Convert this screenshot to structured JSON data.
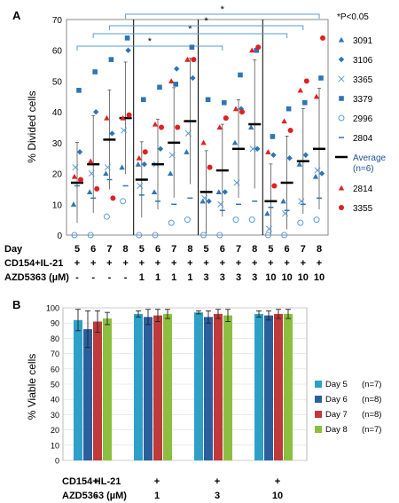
{
  "chart_data": [
    {
      "panel": "A",
      "type": "scatter",
      "ylabel": "% Divided cells",
      "ylim": [
        0,
        70
      ],
      "yticks": [
        0,
        10,
        20,
        30,
        40,
        50,
        60,
        70
      ],
      "row_labels": [
        "Day",
        "CD154+IL-21",
        "AZD5363 (µM)"
      ],
      "columns": [
        {
          "day": "5",
          "cd": "+",
          "azd": "-"
        },
        {
          "day": "6",
          "cd": "+",
          "azd": "-"
        },
        {
          "day": "7",
          "cd": "+",
          "azd": "-"
        },
        {
          "day": "8",
          "cd": "+",
          "azd": "-"
        },
        {
          "day": "5",
          "cd": "+",
          "azd": "1"
        },
        {
          "day": "6",
          "cd": "+",
          "azd": "1"
        },
        {
          "day": "7",
          "cd": "+",
          "azd": "1"
        },
        {
          "day": "8",
          "cd": "+",
          "azd": "1"
        },
        {
          "day": "5",
          "cd": "+",
          "azd": "3"
        },
        {
          "day": "6",
          "cd": "+",
          "azd": "3"
        },
        {
          "day": "7",
          "cd": "+",
          "azd": "3"
        },
        {
          "day": "8",
          "cd": "+",
          "azd": "3"
        },
        {
          "day": "5",
          "cd": "+",
          "azd": "10"
        },
        {
          "day": "6",
          "cd": "+",
          "azd": "10"
        },
        {
          "day": "7",
          "cd": "+",
          "azd": "10"
        },
        {
          "day": "8",
          "cd": "+",
          "azd": "10"
        }
      ],
      "significance_note": "*P<0.05",
      "significance_brackets": [
        {
          "from_col": 0,
          "to_col": 9,
          "label": "*"
        },
        {
          "from_col": 1,
          "to_col": 13,
          "label": "*"
        },
        {
          "from_col": 2,
          "to_col": 14,
          "label": "*"
        },
        {
          "from_col": 3,
          "to_col": 15,
          "label": "*"
        }
      ],
      "series": [
        {
          "name": "3091",
          "marker": "triangle",
          "color": "#2e75b6",
          "values": [
            10,
            14,
            20,
            22,
            23,
            14,
            20,
            27,
            11,
            14,
            30,
            35,
            7,
            11,
            23,
            19
          ]
        },
        {
          "name": "3106",
          "marker": "diamond",
          "color": "#2e75b6",
          "values": [
            27,
            40,
            33,
            60,
            23,
            28,
            54,
            51,
            11,
            14,
            41,
            28,
            26,
            25,
            26,
            20
          ]
        },
        {
          "name": "3365",
          "marker": "x",
          "color": "#5b9bd5",
          "values": [
            22,
            20,
            22,
            34,
            16,
            23,
            26,
            33,
            12,
            10,
            17,
            28,
            2,
            7,
            11,
            21
          ]
        },
        {
          "name": "3379",
          "marker": "square",
          "color": "#2e75b6",
          "values": [
            47,
            53,
            57,
            64,
            44,
            48,
            49,
            61,
            44,
            43,
            52,
            60,
            32,
            41,
            43,
            51
          ]
        },
        {
          "name": "2996",
          "marker": "circle-open",
          "color": "#5b9bd5",
          "values": [
            0,
            0,
            6,
            11,
            0,
            0,
            4,
            5,
            0,
            0,
            5,
            5,
            0,
            0,
            4,
            5
          ]
        },
        {
          "name": "2804",
          "marker": "dash",
          "color": "#2e75b6",
          "values": [
            16,
            12,
            18,
            16,
            13,
            11,
            10,
            12,
            14,
            8,
            10,
            11,
            9,
            8,
            10,
            12
          ]
        },
        {
          "name": "Average (n=6)",
          "marker": "bar",
          "color": "#000000",
          "values": [
            17,
            23,
            31,
            38,
            18,
            23,
            30,
            37,
            14,
            21,
            28,
            36,
            11,
            17,
            24,
            28
          ]
        },
        {
          "name": "2814",
          "marker": "triangle",
          "color": "#e02020",
          "values": [
            19,
            24,
            38,
            38,
            25,
            36,
            50,
            57,
            30,
            35,
            41,
            60,
            27,
            37,
            47,
            45
          ]
        },
        {
          "name": "3355",
          "marker": "circle",
          "color": "#e02020",
          "values": [
            18,
            15,
            12,
            39,
            27,
            35,
            35,
            57,
            22,
            38,
            40,
            61,
            16,
            34,
            50,
            64
          ]
        }
      ]
    },
    {
      "panel": "B",
      "type": "bar",
      "ylabel": "% Viable  cells",
      "ylim": [
        0,
        100
      ],
      "yticks": [
        0,
        10,
        20,
        30,
        40,
        50,
        60,
        70,
        80,
        90,
        100
      ],
      "row_labels": [
        "CD154+IL-21",
        "AZD5363 (µM)"
      ],
      "groups": [
        {
          "cd": "+",
          "azd": "-"
        },
        {
          "cd": "+",
          "azd": "1"
        },
        {
          "cd": "+",
          "azd": "3"
        },
        {
          "cd": "+",
          "azd": "10"
        }
      ],
      "series": [
        {
          "name": "Day 5",
          "n": "(n=7)",
          "color": "#2ea0c8",
          "values": [
            92,
            96,
            97,
            96
          ],
          "errors": [
            7,
            2,
            1,
            2
          ]
        },
        {
          "name": "Day 6",
          "n": "(n=8)",
          "color": "#2a5f9e",
          "values": [
            86,
            94,
            94,
            95
          ],
          "errors": [
            12,
            5,
            4,
            3
          ]
        },
        {
          "name": "Day 7",
          "n": "(n=8)",
          "color": "#c0393b",
          "values": [
            91,
            95,
            96,
            96
          ],
          "errors": [
            7,
            4,
            3,
            3
          ]
        },
        {
          "name": "Day 8",
          "n": "(n=7)",
          "color": "#8cbf3f",
          "values": [
            93,
            96,
            95,
            96
          ],
          "errors": [
            4,
            3,
            4,
            3
          ]
        }
      ]
    }
  ]
}
